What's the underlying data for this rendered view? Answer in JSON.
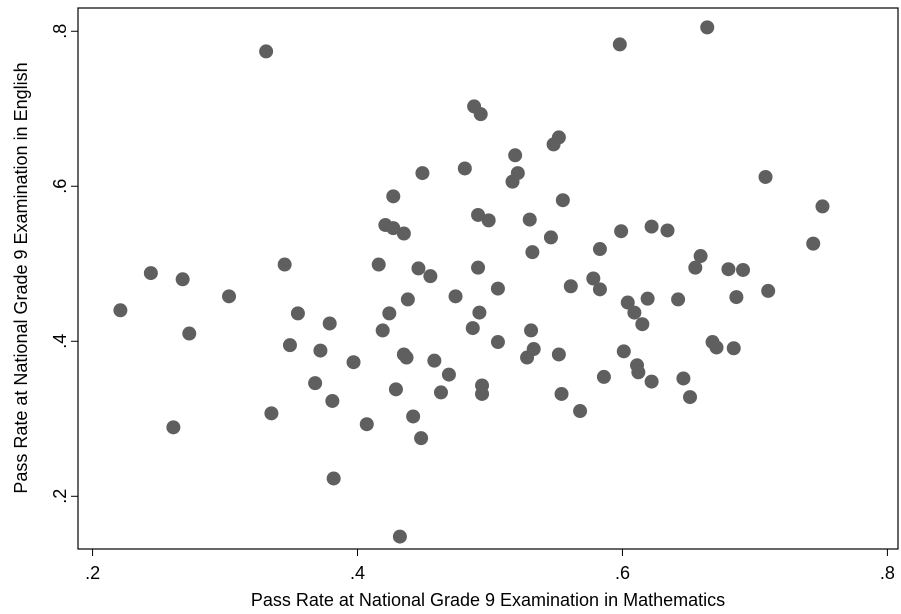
{
  "chart_data": {
    "type": "scatter",
    "xlabel": "Pass Rate at National Grade 9 Examination in Mathematics",
    "ylabel": "Pass Rate at National Grade 9 Examination  in English",
    "color": "#5f5f5f",
    "xlim": [
      0.189,
      0.808
    ],
    "ylim": [
      0.132,
      0.83
    ],
    "xticks": [
      {
        "value": 0.2,
        "label": ".2"
      },
      {
        "value": 0.4,
        "label": ".4"
      },
      {
        "value": 0.6,
        "label": ".6"
      },
      {
        "value": 0.8,
        "label": ".8"
      }
    ],
    "yticks": [
      {
        "value": 0.2,
        "label": ".2"
      },
      {
        "value": 0.4,
        "label": ".4"
      },
      {
        "value": 0.6,
        "label": ".6"
      },
      {
        "value": 0.8,
        "label": ".8"
      }
    ],
    "x": [
      0.221,
      0.244,
      0.261,
      0.268,
      0.273,
      0.303,
      0.331,
      0.335,
      0.345,
      0.349,
      0.355,
      0.368,
      0.372,
      0.379,
      0.381,
      0.382,
      0.397,
      0.407,
      0.416,
      0.419,
      0.421,
      0.424,
      0.427,
      0.427,
      0.429,
      0.432,
      0.435,
      0.435,
      0.437,
      0.438,
      0.442,
      0.446,
      0.448,
      0.449,
      0.455,
      0.458,
      0.463,
      0.469,
      0.474,
      0.481,
      0.487,
      0.488,
      0.491,
      0.491,
      0.492,
      0.493,
      0.494,
      0.494,
      0.499,
      0.506,
      0.506,
      0.517,
      0.519,
      0.521,
      0.528,
      0.53,
      0.531,
      0.532,
      0.533,
      0.546,
      0.548,
      0.552,
      0.552,
      0.554,
      0.555,
      0.561,
      0.568,
      0.578,
      0.583,
      0.583,
      0.586,
      0.598,
      0.599,
      0.601,
      0.604,
      0.609,
      0.611,
      0.612,
      0.615,
      0.619,
      0.622,
      0.622,
      0.634,
      0.642,
      0.646,
      0.651,
      0.655,
      0.659,
      0.664,
      0.668,
      0.671,
      0.68,
      0.684,
      0.686,
      0.691,
      0.708,
      0.71,
      0.744,
      0.751
    ],
    "values": [
      0.44,
      0.488,
      0.289,
      0.48,
      0.41,
      0.458,
      0.774,
      0.307,
      0.499,
      0.395,
      0.436,
      0.346,
      0.388,
      0.423,
      0.323,
      0.223,
      0.373,
      0.293,
      0.499,
      0.414,
      0.55,
      0.436,
      0.587,
      0.546,
      0.338,
      0.148,
      0.383,
      0.539,
      0.379,
      0.454,
      0.303,
      0.494,
      0.275,
      0.617,
      0.484,
      0.375,
      0.334,
      0.357,
      0.458,
      0.623,
      0.417,
      0.703,
      0.563,
      0.495,
      0.437,
      0.693,
      0.343,
      0.332,
      0.556,
      0.468,
      0.399,
      0.606,
      0.64,
      0.617,
      0.379,
      0.557,
      0.414,
      0.515,
      0.39,
      0.534,
      0.654,
      0.663,
      0.383,
      0.332,
      0.582,
      0.471,
      0.31,
      0.481,
      0.519,
      0.467,
      0.354,
      0.783,
      0.542,
      0.387,
      0.45,
      0.437,
      0.369,
      0.36,
      0.422,
      0.455,
      0.348,
      0.548,
      0.543,
      0.454,
      0.352,
      0.328,
      0.495,
      0.51,
      0.805,
      0.399,
      0.392,
      0.493,
      0.391,
      0.457,
      0.492,
      0.612,
      0.465,
      0.526,
      0.574
    ]
  }
}
